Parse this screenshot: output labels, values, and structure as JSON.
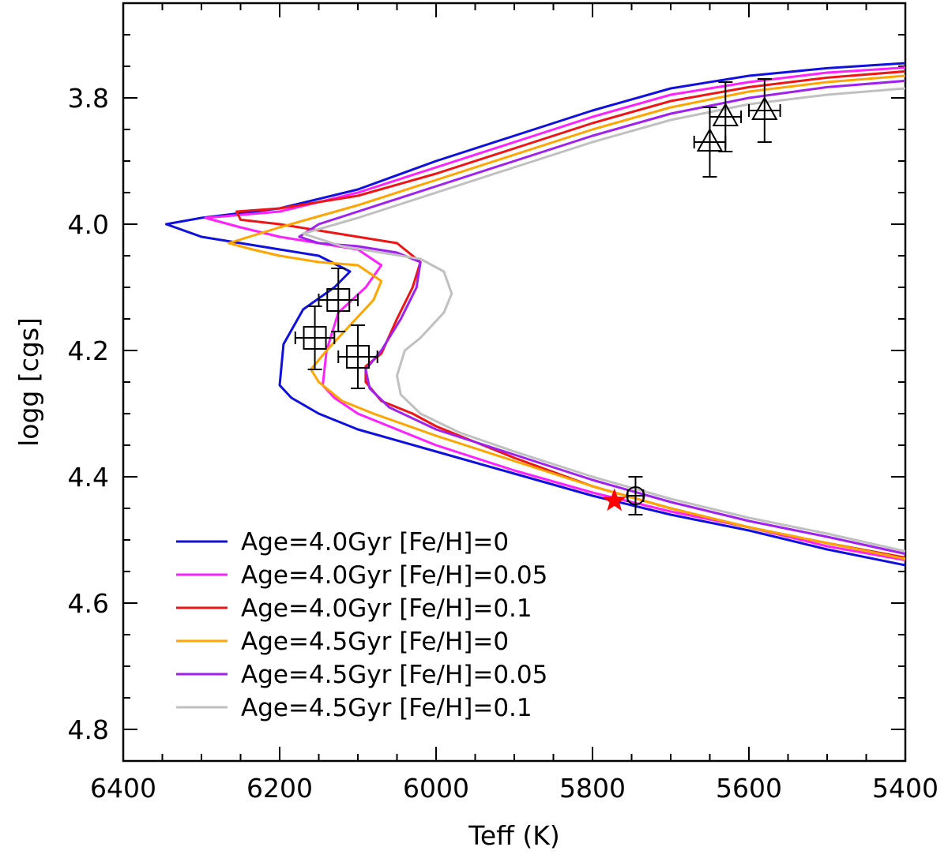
{
  "chart_data": {
    "type": "line",
    "title": "",
    "xlabel": "Teff (K)",
    "ylabel": "logg [cgs]",
    "xlim": [
      6400,
      5400
    ],
    "ylim": [
      3.65,
      4.85
    ],
    "x_ticks": [
      6400,
      6200,
      6000,
      5800,
      5600,
      5400
    ],
    "x_tick_labels": [
      "6400",
      "6200",
      "6000",
      "5800",
      "5600",
      "5400"
    ],
    "y_ticks": [
      3.8,
      4.0,
      4.2,
      4.4,
      4.6,
      4.8
    ],
    "y_tick_labels": [
      "3.8",
      "4.0",
      "4.2",
      "4.4",
      "4.6",
      "4.8"
    ],
    "grid": false,
    "legend_position": "bottom-left",
    "series": [
      {
        "name": "Age=4.0Gyr [Fe/H]=0",
        "color": "#1010e0",
        "points": [
          [
            5400,
            3.745
          ],
          [
            5500,
            3.753
          ],
          [
            5600,
            3.765
          ],
          [
            5700,
            3.785
          ],
          [
            5800,
            3.82
          ],
          [
            5900,
            3.86
          ],
          [
            6000,
            3.9
          ],
          [
            6100,
            3.945
          ],
          [
            6200,
            3.975
          ],
          [
            6300,
            3.99
          ],
          [
            6345,
            4.0
          ],
          [
            6300,
            4.02
          ],
          [
            6250,
            4.03
          ],
          [
            6200,
            4.04
          ],
          [
            6150,
            4.05
          ],
          [
            6110,
            4.075
          ],
          [
            6130,
            4.1
          ],
          [
            6170,
            4.135
          ],
          [
            6195,
            4.19
          ],
          [
            6200,
            4.255
          ],
          [
            6185,
            4.275
          ],
          [
            6150,
            4.3
          ],
          [
            6100,
            4.325
          ],
          [
            6000,
            4.36
          ],
          [
            5900,
            4.395
          ],
          [
            5800,
            4.43
          ],
          [
            5700,
            4.46
          ],
          [
            5600,
            4.485
          ],
          [
            5500,
            4.515
          ],
          [
            5400,
            4.54
          ]
        ]
      },
      {
        "name": "Age=4.0Gyr [Fe/H]=0.05",
        "color": "#ff20ff",
        "points": [
          [
            5400,
            3.752
          ],
          [
            5500,
            3.76
          ],
          [
            5600,
            3.775
          ],
          [
            5700,
            3.795
          ],
          [
            5800,
            3.83
          ],
          [
            5900,
            3.87
          ],
          [
            6000,
            3.91
          ],
          [
            6100,
            3.95
          ],
          [
            6200,
            3.98
          ],
          [
            6295,
            3.99
          ],
          [
            6250,
            4.005
          ],
          [
            6200,
            4.02
          ],
          [
            6150,
            4.03
          ],
          [
            6100,
            4.04
          ],
          [
            6070,
            4.065
          ],
          [
            6090,
            4.1
          ],
          [
            6125,
            4.14
          ],
          [
            6140,
            4.2
          ],
          [
            6145,
            4.255
          ],
          [
            6130,
            4.275
          ],
          [
            6100,
            4.3
          ],
          [
            6050,
            4.325
          ],
          [
            6000,
            4.35
          ],
          [
            5900,
            4.39
          ],
          [
            5800,
            4.425
          ],
          [
            5700,
            4.455
          ],
          [
            5600,
            4.48
          ],
          [
            5500,
            4.51
          ],
          [
            5400,
            4.532
          ]
        ]
      },
      {
        "name": "Age=4.0Gyr [Fe/H]=0.1",
        "color": "#ee1515",
        "points": [
          [
            5400,
            3.758
          ],
          [
            5500,
            3.768
          ],
          [
            5600,
            3.783
          ],
          [
            5700,
            3.805
          ],
          [
            5800,
            3.84
          ],
          [
            5900,
            3.88
          ],
          [
            6000,
            3.92
          ],
          [
            6100,
            3.955
          ],
          [
            6200,
            3.975
          ],
          [
            6255,
            3.98
          ],
          [
            6250,
            3.993
          ],
          [
            6200,
            4.0
          ],
          [
            6150,
            4.01
          ],
          [
            6100,
            4.02
          ],
          [
            6050,
            4.03
          ],
          [
            6020,
            4.06
          ],
          [
            6030,
            4.1
          ],
          [
            6050,
            4.15
          ],
          [
            6070,
            4.205
          ],
          [
            6090,
            4.225
          ],
          [
            6090,
            4.25
          ],
          [
            6070,
            4.28
          ],
          [
            6030,
            4.3
          ],
          [
            6000,
            4.32
          ],
          [
            5900,
            4.37
          ],
          [
            5800,
            4.415
          ],
          [
            5700,
            4.45
          ],
          [
            5600,
            4.48
          ],
          [
            5500,
            4.505
          ],
          [
            5400,
            4.528
          ]
        ]
      },
      {
        "name": "Age=4.5Gyr [Fe/H]=0",
        "color": "#ffa500",
        "points": [
          [
            5400,
            3.765
          ],
          [
            5500,
            3.775
          ],
          [
            5600,
            3.79
          ],
          [
            5700,
            3.815
          ],
          [
            5800,
            3.85
          ],
          [
            5900,
            3.89
          ],
          [
            6000,
            3.93
          ],
          [
            6100,
            3.97
          ],
          [
            6200,
            4.005
          ],
          [
            6265,
            4.03
          ],
          [
            6235,
            4.04
          ],
          [
            6200,
            4.05
          ],
          [
            6150,
            4.06
          ],
          [
            6100,
            4.065
          ],
          [
            6070,
            4.09
          ],
          [
            6080,
            4.12
          ],
          [
            6110,
            4.16
          ],
          [
            6140,
            4.2
          ],
          [
            6160,
            4.23
          ],
          [
            6150,
            4.25
          ],
          [
            6120,
            4.28
          ],
          [
            6080,
            4.3
          ],
          [
            6000,
            4.335
          ],
          [
            5900,
            4.375
          ],
          [
            5800,
            4.415
          ],
          [
            5700,
            4.45
          ],
          [
            5600,
            4.48
          ],
          [
            5500,
            4.505
          ],
          [
            5400,
            4.53
          ]
        ]
      },
      {
        "name": "Age=4.5Gyr [Fe/H]=0.05",
        "color": "#a020f0",
        "points": [
          [
            5400,
            3.773
          ],
          [
            5500,
            3.783
          ],
          [
            5600,
            3.8
          ],
          [
            5700,
            3.825
          ],
          [
            5800,
            3.86
          ],
          [
            5900,
            3.9
          ],
          [
            6000,
            3.94
          ],
          [
            6100,
            3.98
          ],
          [
            6150,
            4.0
          ],
          [
            6175,
            4.02
          ],
          [
            6150,
            4.03
          ],
          [
            6100,
            4.035
          ],
          [
            6050,
            4.045
          ],
          [
            6020,
            4.06
          ],
          [
            6025,
            4.1
          ],
          [
            6045,
            4.15
          ],
          [
            6070,
            4.2
          ],
          [
            6090,
            4.23
          ],
          [
            6085,
            4.26
          ],
          [
            6060,
            4.29
          ],
          [
            6000,
            4.325
          ],
          [
            5900,
            4.365
          ],
          [
            5800,
            4.405
          ],
          [
            5700,
            4.44
          ],
          [
            5600,
            4.47
          ],
          [
            5500,
            4.495
          ],
          [
            5400,
            4.522
          ]
        ]
      },
      {
        "name": "Age=4.5Gyr [Fe/H]=0.1",
        "color": "#c0c0c0",
        "points": [
          [
            5400,
            3.785
          ],
          [
            5500,
            3.795
          ],
          [
            5600,
            3.81
          ],
          [
            5700,
            3.835
          ],
          [
            5800,
            3.87
          ],
          [
            5900,
            3.91
          ],
          [
            6000,
            3.95
          ],
          [
            6100,
            3.99
          ],
          [
            6170,
            4.015
          ],
          [
            6120,
            4.035
          ],
          [
            6070,
            4.045
          ],
          [
            6020,
            4.055
          ],
          [
            5990,
            4.075
          ],
          [
            5980,
            4.11
          ],
          [
            5990,
            4.14
          ],
          [
            6020,
            4.18
          ],
          [
            6040,
            4.2
          ],
          [
            6050,
            4.24
          ],
          [
            6045,
            4.27
          ],
          [
            6020,
            4.3
          ],
          [
            5970,
            4.33
          ],
          [
            5900,
            4.36
          ],
          [
            5800,
            4.4
          ],
          [
            5700,
            4.435
          ],
          [
            5600,
            4.465
          ],
          [
            5500,
            4.49
          ],
          [
            5400,
            4.518
          ]
        ]
      }
    ],
    "observations": {
      "squares": [
        {
          "teff": 6155,
          "logg": 4.18,
          "teff_err": 25,
          "logg_err": 0.05
        },
        {
          "teff": 6125,
          "logg": 4.12,
          "teff_err": 25,
          "logg_err": 0.05
        },
        {
          "teff": 6100,
          "logg": 4.21,
          "teff_err": 25,
          "logg_err": 0.05
        }
      ],
      "triangles": [
        {
          "teff": 5650,
          "logg": 3.87,
          "teff_err": 20,
          "logg_err": 0.055
        },
        {
          "teff": 5630,
          "logg": 3.83,
          "teff_err": 20,
          "logg_err": 0.055
        },
        {
          "teff": 5580,
          "logg": 3.82,
          "teff_err": 20,
          "logg_err": 0.05
        }
      ],
      "circle": {
        "teff": 5745,
        "logg": 4.43,
        "teff_err": 10,
        "logg_err": 0.03
      },
      "sun_star": {
        "teff": 5772,
        "logg": 4.438,
        "color": "#ff0000"
      }
    }
  }
}
